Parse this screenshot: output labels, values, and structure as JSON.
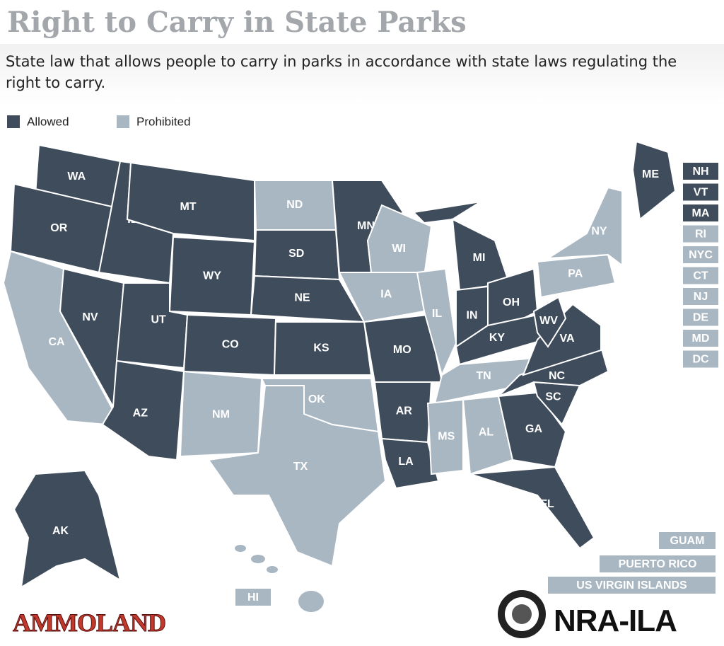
{
  "header": {
    "title": "Right to Carry in State Parks",
    "subtitle": "State law that allows people to carry in parks in accordance with state laws regulating the right to carry."
  },
  "legend": [
    {
      "label": "Allowed",
      "color": "#3f4c5b"
    },
    {
      "label": "Prohibited",
      "color": "#a9b7c3"
    }
  ],
  "states": [
    {
      "label": "WA",
      "allowed": true
    },
    {
      "label": "OR",
      "allowed": true
    },
    {
      "label": "CA",
      "allowed": false
    },
    {
      "label": "NV",
      "allowed": true
    },
    {
      "label": "ID",
      "allowed": true
    },
    {
      "label": "MT",
      "allowed": true
    },
    {
      "label": "WY",
      "allowed": true
    },
    {
      "label": "UT",
      "allowed": true
    },
    {
      "label": "CO",
      "allowed": true
    },
    {
      "label": "AZ",
      "allowed": true
    },
    {
      "label": "NM",
      "allowed": false
    },
    {
      "label": "ND",
      "allowed": false
    },
    {
      "label": "SD",
      "allowed": true
    },
    {
      "label": "NE",
      "allowed": true
    },
    {
      "label": "KS",
      "allowed": true
    },
    {
      "label": "OK",
      "allowed": false
    },
    {
      "label": "TX",
      "allowed": false
    },
    {
      "label": "MN",
      "allowed": true
    },
    {
      "label": "IA",
      "allowed": false
    },
    {
      "label": "MO",
      "allowed": true
    },
    {
      "label": "AR",
      "allowed": true
    },
    {
      "label": "LA",
      "allowed": true
    },
    {
      "label": "WI",
      "allowed": false
    },
    {
      "label": "IL",
      "allowed": false
    },
    {
      "label": "MI",
      "allowed": true
    },
    {
      "label": "IN",
      "allowed": true
    },
    {
      "label": "OH",
      "allowed": true
    },
    {
      "label": "KY",
      "allowed": true
    },
    {
      "label": "TN",
      "allowed": false
    },
    {
      "label": "MS",
      "allowed": false
    },
    {
      "label": "AL",
      "allowed": false
    },
    {
      "label": "GA",
      "allowed": true
    },
    {
      "label": "FL",
      "allowed": true
    },
    {
      "label": "SC",
      "allowed": true
    },
    {
      "label": "NC",
      "allowed": true
    },
    {
      "label": "VA",
      "allowed": true
    },
    {
      "label": "WV",
      "allowed": true
    },
    {
      "label": "PA",
      "allowed": false
    },
    {
      "label": "NY",
      "allowed": false
    },
    {
      "label": "ME",
      "allowed": true
    },
    {
      "label": "AK",
      "allowed": true
    }
  ],
  "small_states": [
    {
      "label": "NH",
      "allowed": true
    },
    {
      "label": "VT",
      "allowed": true
    },
    {
      "label": "MA",
      "allowed": true
    },
    {
      "label": "RI",
      "allowed": false
    },
    {
      "label": "NYC",
      "allowed": false
    },
    {
      "label": "CT",
      "allowed": false
    },
    {
      "label": "NJ",
      "allowed": false
    },
    {
      "label": "DE",
      "allowed": false
    },
    {
      "label": "MD",
      "allowed": false
    },
    {
      "label": "DC",
      "allowed": false
    }
  ],
  "territories": [
    {
      "label": "GUAM",
      "allowed": false
    },
    {
      "label": "PUERTO RICO",
      "allowed": false
    },
    {
      "label": "US VIRGIN ISLANDS",
      "allowed": false
    }
  ],
  "hawaii": {
    "label": "HI",
    "allowed": false
  },
  "logos": {
    "left": "AMMOLAND",
    "right": "NRA-ILA"
  }
}
